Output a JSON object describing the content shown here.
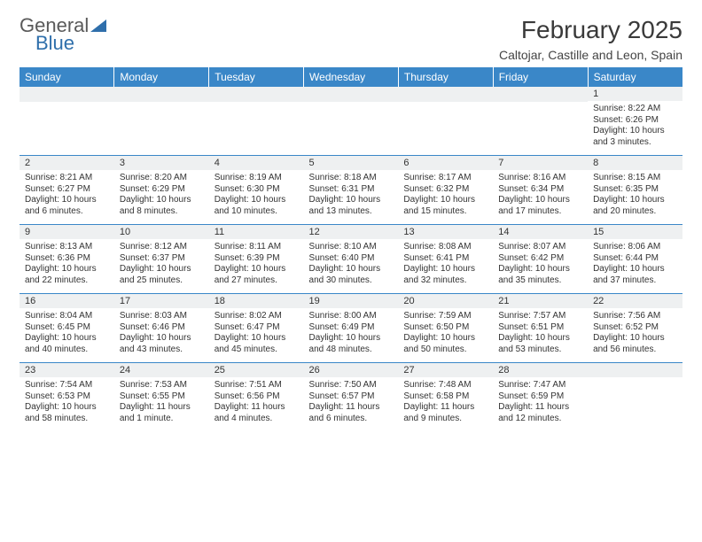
{
  "logo": {
    "word1": "General",
    "word2": "Blue"
  },
  "title": "February 2025",
  "subtitle": "Caltojar, Castille and Leon, Spain",
  "colors": {
    "header_bg": "#3a87c8",
    "header_text": "#ffffff",
    "daynum_bg": "#eef0f1",
    "row_border": "#3a87c8",
    "logo_gray": "#5a5a5a",
    "logo_blue": "#2f6fab"
  },
  "weekdays": [
    "Sunday",
    "Monday",
    "Tuesday",
    "Wednesday",
    "Thursday",
    "Friday",
    "Saturday"
  ],
  "weeks": [
    [
      {
        "n": "",
        "sr": "",
        "ss": "",
        "dl": ""
      },
      {
        "n": "",
        "sr": "",
        "ss": "",
        "dl": ""
      },
      {
        "n": "",
        "sr": "",
        "ss": "",
        "dl": ""
      },
      {
        "n": "",
        "sr": "",
        "ss": "",
        "dl": ""
      },
      {
        "n": "",
        "sr": "",
        "ss": "",
        "dl": ""
      },
      {
        "n": "",
        "sr": "",
        "ss": "",
        "dl": ""
      },
      {
        "n": "1",
        "sr": "Sunrise: 8:22 AM",
        "ss": "Sunset: 6:26 PM",
        "dl": "Daylight: 10 hours and 3 minutes."
      }
    ],
    [
      {
        "n": "2",
        "sr": "Sunrise: 8:21 AM",
        "ss": "Sunset: 6:27 PM",
        "dl": "Daylight: 10 hours and 6 minutes."
      },
      {
        "n": "3",
        "sr": "Sunrise: 8:20 AM",
        "ss": "Sunset: 6:29 PM",
        "dl": "Daylight: 10 hours and 8 minutes."
      },
      {
        "n": "4",
        "sr": "Sunrise: 8:19 AM",
        "ss": "Sunset: 6:30 PM",
        "dl": "Daylight: 10 hours and 10 minutes."
      },
      {
        "n": "5",
        "sr": "Sunrise: 8:18 AM",
        "ss": "Sunset: 6:31 PM",
        "dl": "Daylight: 10 hours and 13 minutes."
      },
      {
        "n": "6",
        "sr": "Sunrise: 8:17 AM",
        "ss": "Sunset: 6:32 PM",
        "dl": "Daylight: 10 hours and 15 minutes."
      },
      {
        "n": "7",
        "sr": "Sunrise: 8:16 AM",
        "ss": "Sunset: 6:34 PM",
        "dl": "Daylight: 10 hours and 17 minutes."
      },
      {
        "n": "8",
        "sr": "Sunrise: 8:15 AM",
        "ss": "Sunset: 6:35 PM",
        "dl": "Daylight: 10 hours and 20 minutes."
      }
    ],
    [
      {
        "n": "9",
        "sr": "Sunrise: 8:13 AM",
        "ss": "Sunset: 6:36 PM",
        "dl": "Daylight: 10 hours and 22 minutes."
      },
      {
        "n": "10",
        "sr": "Sunrise: 8:12 AM",
        "ss": "Sunset: 6:37 PM",
        "dl": "Daylight: 10 hours and 25 minutes."
      },
      {
        "n": "11",
        "sr": "Sunrise: 8:11 AM",
        "ss": "Sunset: 6:39 PM",
        "dl": "Daylight: 10 hours and 27 minutes."
      },
      {
        "n": "12",
        "sr": "Sunrise: 8:10 AM",
        "ss": "Sunset: 6:40 PM",
        "dl": "Daylight: 10 hours and 30 minutes."
      },
      {
        "n": "13",
        "sr": "Sunrise: 8:08 AM",
        "ss": "Sunset: 6:41 PM",
        "dl": "Daylight: 10 hours and 32 minutes."
      },
      {
        "n": "14",
        "sr": "Sunrise: 8:07 AM",
        "ss": "Sunset: 6:42 PM",
        "dl": "Daylight: 10 hours and 35 minutes."
      },
      {
        "n": "15",
        "sr": "Sunrise: 8:06 AM",
        "ss": "Sunset: 6:44 PM",
        "dl": "Daylight: 10 hours and 37 minutes."
      }
    ],
    [
      {
        "n": "16",
        "sr": "Sunrise: 8:04 AM",
        "ss": "Sunset: 6:45 PM",
        "dl": "Daylight: 10 hours and 40 minutes."
      },
      {
        "n": "17",
        "sr": "Sunrise: 8:03 AM",
        "ss": "Sunset: 6:46 PM",
        "dl": "Daylight: 10 hours and 43 minutes."
      },
      {
        "n": "18",
        "sr": "Sunrise: 8:02 AM",
        "ss": "Sunset: 6:47 PM",
        "dl": "Daylight: 10 hours and 45 minutes."
      },
      {
        "n": "19",
        "sr": "Sunrise: 8:00 AM",
        "ss": "Sunset: 6:49 PM",
        "dl": "Daylight: 10 hours and 48 minutes."
      },
      {
        "n": "20",
        "sr": "Sunrise: 7:59 AM",
        "ss": "Sunset: 6:50 PM",
        "dl": "Daylight: 10 hours and 50 minutes."
      },
      {
        "n": "21",
        "sr": "Sunrise: 7:57 AM",
        "ss": "Sunset: 6:51 PM",
        "dl": "Daylight: 10 hours and 53 minutes."
      },
      {
        "n": "22",
        "sr": "Sunrise: 7:56 AM",
        "ss": "Sunset: 6:52 PM",
        "dl": "Daylight: 10 hours and 56 minutes."
      }
    ],
    [
      {
        "n": "23",
        "sr": "Sunrise: 7:54 AM",
        "ss": "Sunset: 6:53 PM",
        "dl": "Daylight: 10 hours and 58 minutes."
      },
      {
        "n": "24",
        "sr": "Sunrise: 7:53 AM",
        "ss": "Sunset: 6:55 PM",
        "dl": "Daylight: 11 hours and 1 minute."
      },
      {
        "n": "25",
        "sr": "Sunrise: 7:51 AM",
        "ss": "Sunset: 6:56 PM",
        "dl": "Daylight: 11 hours and 4 minutes."
      },
      {
        "n": "26",
        "sr": "Sunrise: 7:50 AM",
        "ss": "Sunset: 6:57 PM",
        "dl": "Daylight: 11 hours and 6 minutes."
      },
      {
        "n": "27",
        "sr": "Sunrise: 7:48 AM",
        "ss": "Sunset: 6:58 PM",
        "dl": "Daylight: 11 hours and 9 minutes."
      },
      {
        "n": "28",
        "sr": "Sunrise: 7:47 AM",
        "ss": "Sunset: 6:59 PM",
        "dl": "Daylight: 11 hours and 12 minutes."
      },
      {
        "n": "",
        "sr": "",
        "ss": "",
        "dl": ""
      }
    ]
  ]
}
